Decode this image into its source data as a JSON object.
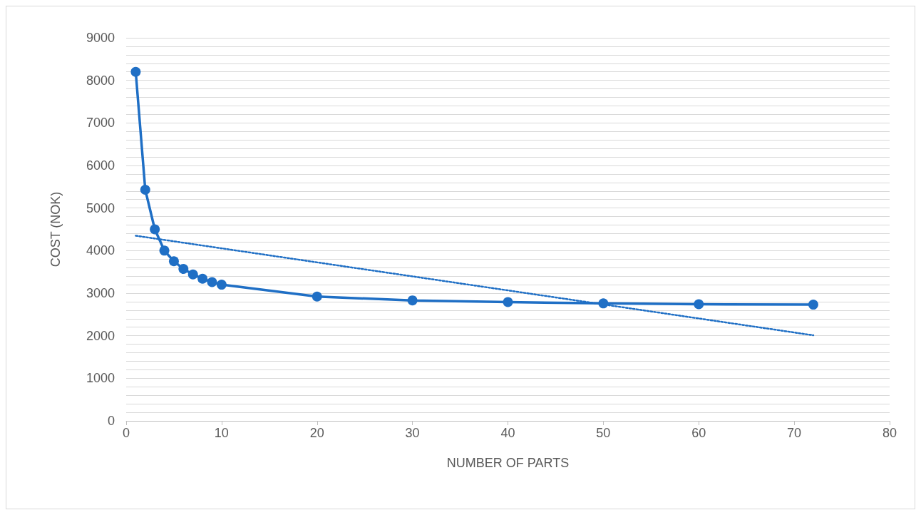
{
  "chart_data": {
    "type": "line",
    "xlabel": "NUMBER OF PARTS",
    "ylabel": "COST (NOK)",
    "xlim": [
      0,
      80
    ],
    "xticks": [
      0,
      10,
      20,
      30,
      40,
      50,
      60,
      70,
      80
    ],
    "ylim": [
      0,
      9000
    ],
    "yticks": [
      0,
      {
        "value": 200,
        "label": null
      },
      {
        "value": 400,
        "label": null
      },
      {
        "value": 600,
        "label": null
      },
      {
        "value": 800,
        "label": null
      },
      1000,
      {
        "value": 1200,
        "label": null
      },
      {
        "value": 1400,
        "label": null
      },
      {
        "value": 1600,
        "label": null
      },
      {
        "value": 1800,
        "label": null
      },
      2000,
      {
        "value": 2200,
        "label": null
      },
      {
        "value": 2400,
        "label": null
      },
      {
        "value": 2600,
        "label": null
      },
      {
        "value": 2800,
        "label": null
      },
      3000,
      {
        "value": 3200,
        "label": null
      },
      {
        "value": 3400,
        "label": null
      },
      {
        "value": 3600,
        "label": null
      },
      {
        "value": 3800,
        "label": null
      },
      4000,
      {
        "value": 4200,
        "label": null
      },
      {
        "value": 4400,
        "label": null
      },
      {
        "value": 4600,
        "label": null
      },
      {
        "value": 4800,
        "label": null
      },
      5000,
      {
        "value": 5200,
        "label": null
      },
      {
        "value": 5400,
        "label": null
      },
      {
        "value": 5600,
        "label": null
      },
      {
        "value": 5800,
        "label": null
      },
      6000,
      {
        "value": 6200,
        "label": null
      },
      {
        "value": 6400,
        "label": null
      },
      {
        "value": 6600,
        "label": null
      },
      {
        "value": 6800,
        "label": null
      },
      7000,
      {
        "value": 7200,
        "label": null
      },
      {
        "value": 7400,
        "label": null
      },
      {
        "value": 7600,
        "label": null
      },
      {
        "value": 7800,
        "label": null
      },
      8000,
      {
        "value": 8200,
        "label": null
      },
      {
        "value": 8400,
        "label": null
      },
      {
        "value": 8600,
        "label": null
      },
      {
        "value": 8800,
        "label": null
      },
      9000
    ],
    "grid": "y",
    "series": [
      {
        "color": "#1f6fc5",
        "marker": "circle",
        "line_style": "solid",
        "x": [
          1,
          2,
          3,
          4,
          5,
          6,
          7,
          8,
          9,
          10,
          20,
          30,
          40,
          50,
          60,
          72
        ],
        "values": [
          8200,
          5430,
          4500,
          4000,
          3750,
          3570,
          3440,
          3340,
          3260,
          3200,
          2920,
          2830,
          2790,
          2760,
          2740,
          2730
        ]
      },
      {
        "color": "#1f6fc5",
        "marker": "none",
        "line_style": "dotted",
        "x": [
          1,
          72
        ],
        "values": [
          4350,
          2010
        ]
      }
    ]
  }
}
